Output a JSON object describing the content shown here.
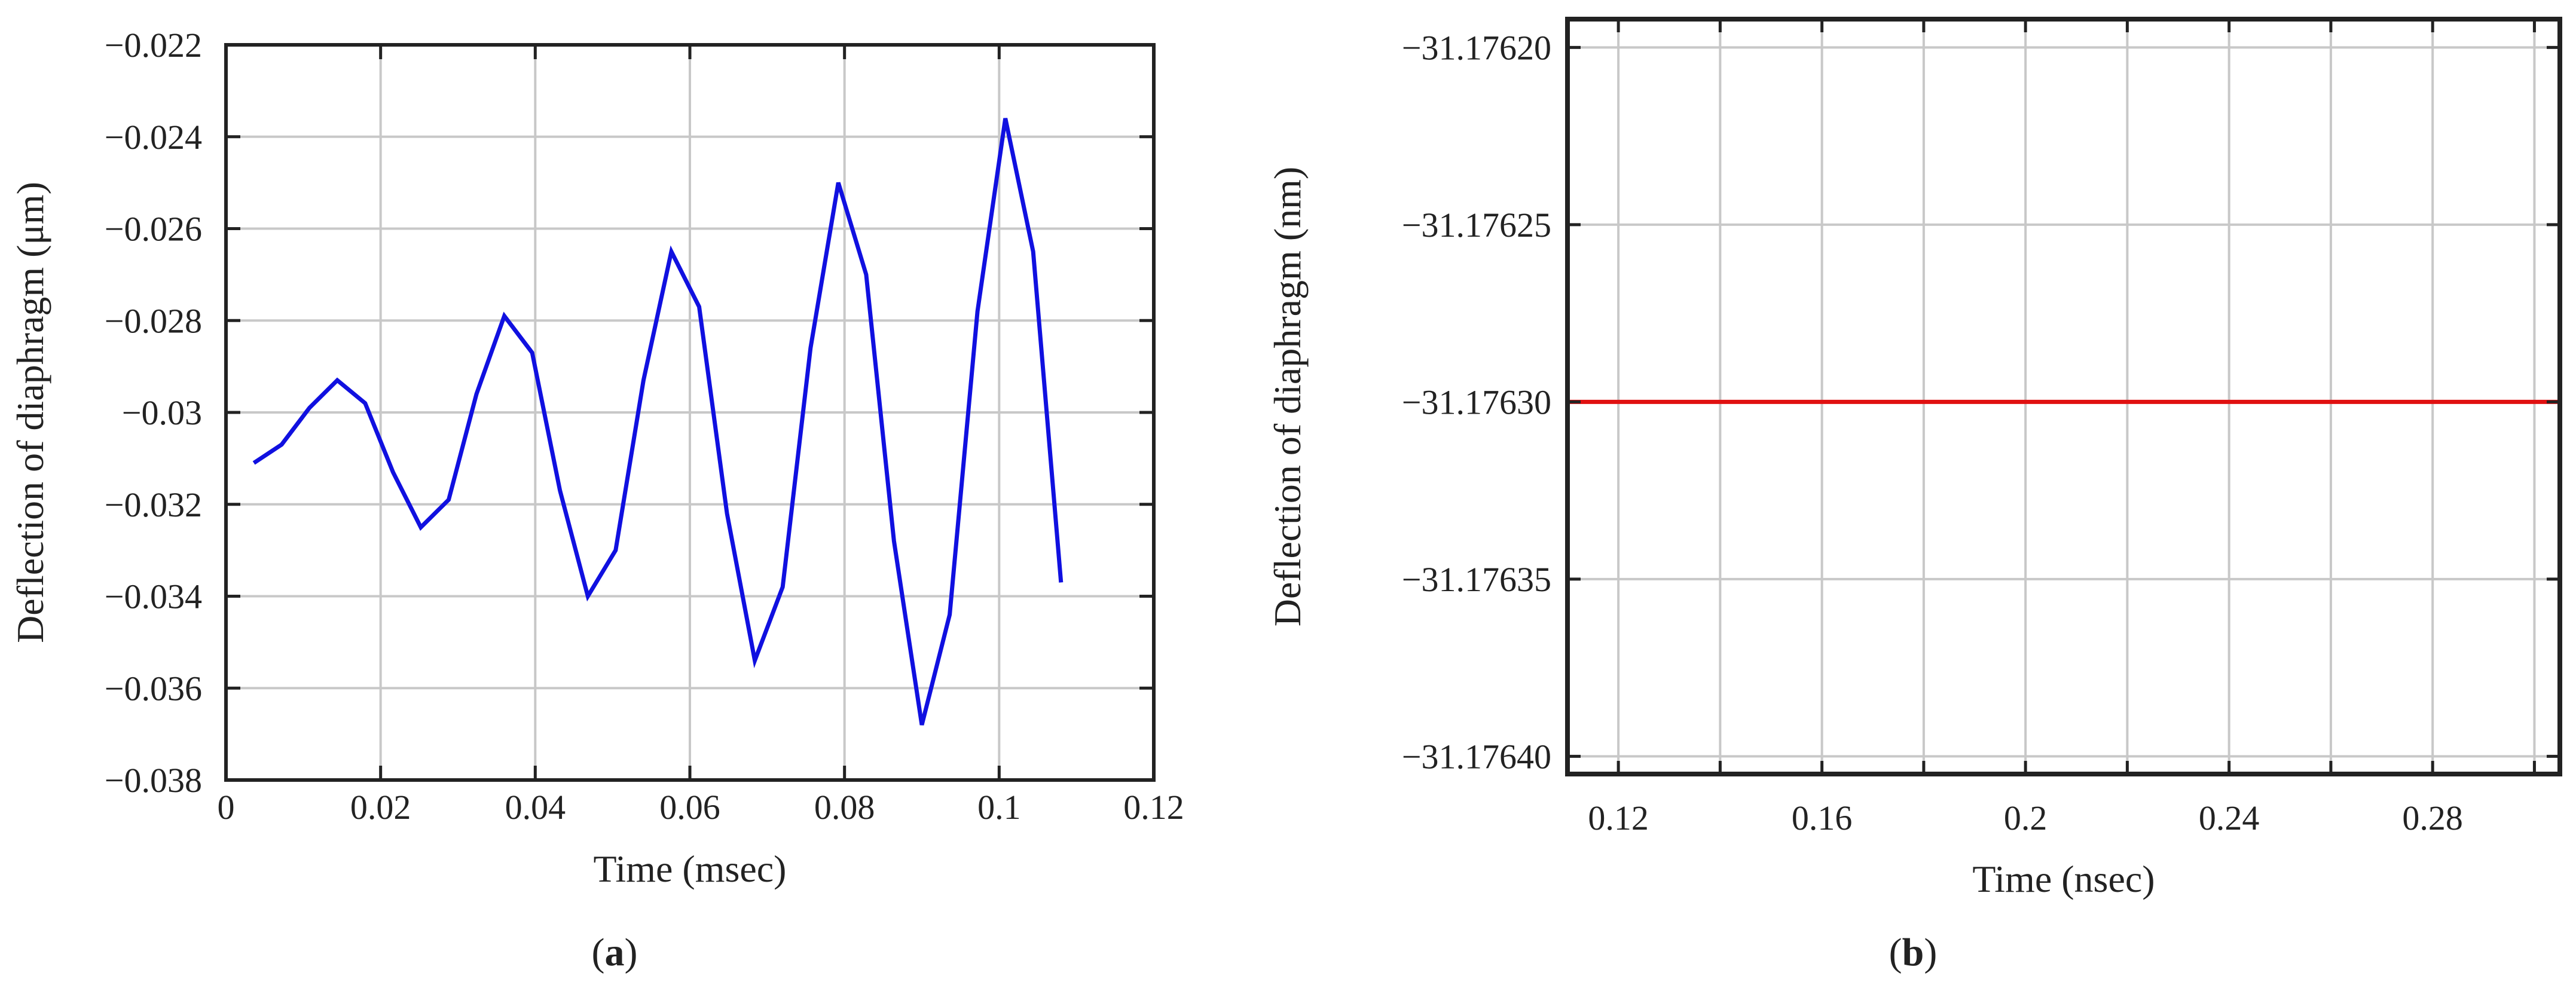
{
  "chart_data": [
    {
      "type": "line",
      "panel_label": "a",
      "xlabel": "Time (msec)",
      "ylabel": "Deflection of diaphragm (μm)",
      "xlim": [
        0,
        0.12
      ],
      "ylim": [
        -0.038,
        -0.022
      ],
      "xticks": [
        0,
        0.02,
        0.04,
        0.06,
        0.08,
        0.1,
        0.12
      ],
      "xtick_labels": [
        "0",
        "0.02",
        "0.04",
        "0.06",
        "0.08",
        "0.1",
        "0.12"
      ],
      "yticks": [
        -0.022,
        -0.024,
        -0.026,
        -0.028,
        -0.03,
        -0.032,
        -0.034,
        -0.036,
        -0.038
      ],
      "ytick_labels": [
        "−0.022",
        "−0.024",
        "−0.026",
        "−0.028",
        "−0.03",
        "−0.032",
        "−0.034",
        "−0.036",
        "−0.038"
      ],
      "grid": true,
      "color": "#1010e0",
      "x": [
        0.0036,
        0.0072,
        0.0108,
        0.0144,
        0.018,
        0.0216,
        0.0252,
        0.0288,
        0.0324,
        0.036,
        0.0396,
        0.0432,
        0.0468,
        0.0504,
        0.054,
        0.0576,
        0.0612,
        0.0648,
        0.0684,
        0.072,
        0.0756,
        0.0792,
        0.0828,
        0.0864,
        0.09,
        0.0936,
        0.0972,
        0.1008,
        0.1044,
        0.108
      ],
      "y": [
        -0.0311,
        -0.0307,
        -0.0299,
        -0.0293,
        -0.0298,
        -0.0313,
        -0.0325,
        -0.0319,
        -0.0296,
        -0.0279,
        -0.0287,
        -0.0317,
        -0.034,
        -0.033,
        -0.0293,
        -0.0265,
        -0.0277,
        -0.0322,
        -0.0354,
        -0.0338,
        -0.0286,
        -0.025,
        -0.027,
        -0.0328,
        -0.0368,
        -0.0344,
        -0.0278,
        -0.0236,
        -0.0265,
        -0.0337
      ]
    },
    {
      "type": "line",
      "panel_label": "b",
      "xlabel": "Time (nsec)",
      "ylabel": "Deflection of diaphragm (nm)",
      "xlim": [
        0.11,
        0.305
      ],
      "ylim": [
        -31.176405,
        -31.176192
      ],
      "xticks": [
        0.12,
        0.16,
        0.2,
        0.24,
        0.28
      ],
      "xtick_labels": [
        "0.12",
        "0.16",
        "0.2",
        "0.24",
        "0.28"
      ],
      "x_minor_gridlines": [
        0.14,
        0.18,
        0.22,
        0.26,
        0.3
      ],
      "yticks": [
        -31.1762,
        -31.17625,
        -31.1763,
        -31.17635,
        -31.1764
      ],
      "ytick_labels": [
        "−31.17620",
        "−31.17625",
        "−31.17630",
        "−31.17635",
        "−31.17640"
      ],
      "grid": true,
      "color": "#e01010",
      "x": [
        0.11,
        0.305
      ],
      "y": [
        -31.1763,
        -31.1763
      ]
    }
  ]
}
